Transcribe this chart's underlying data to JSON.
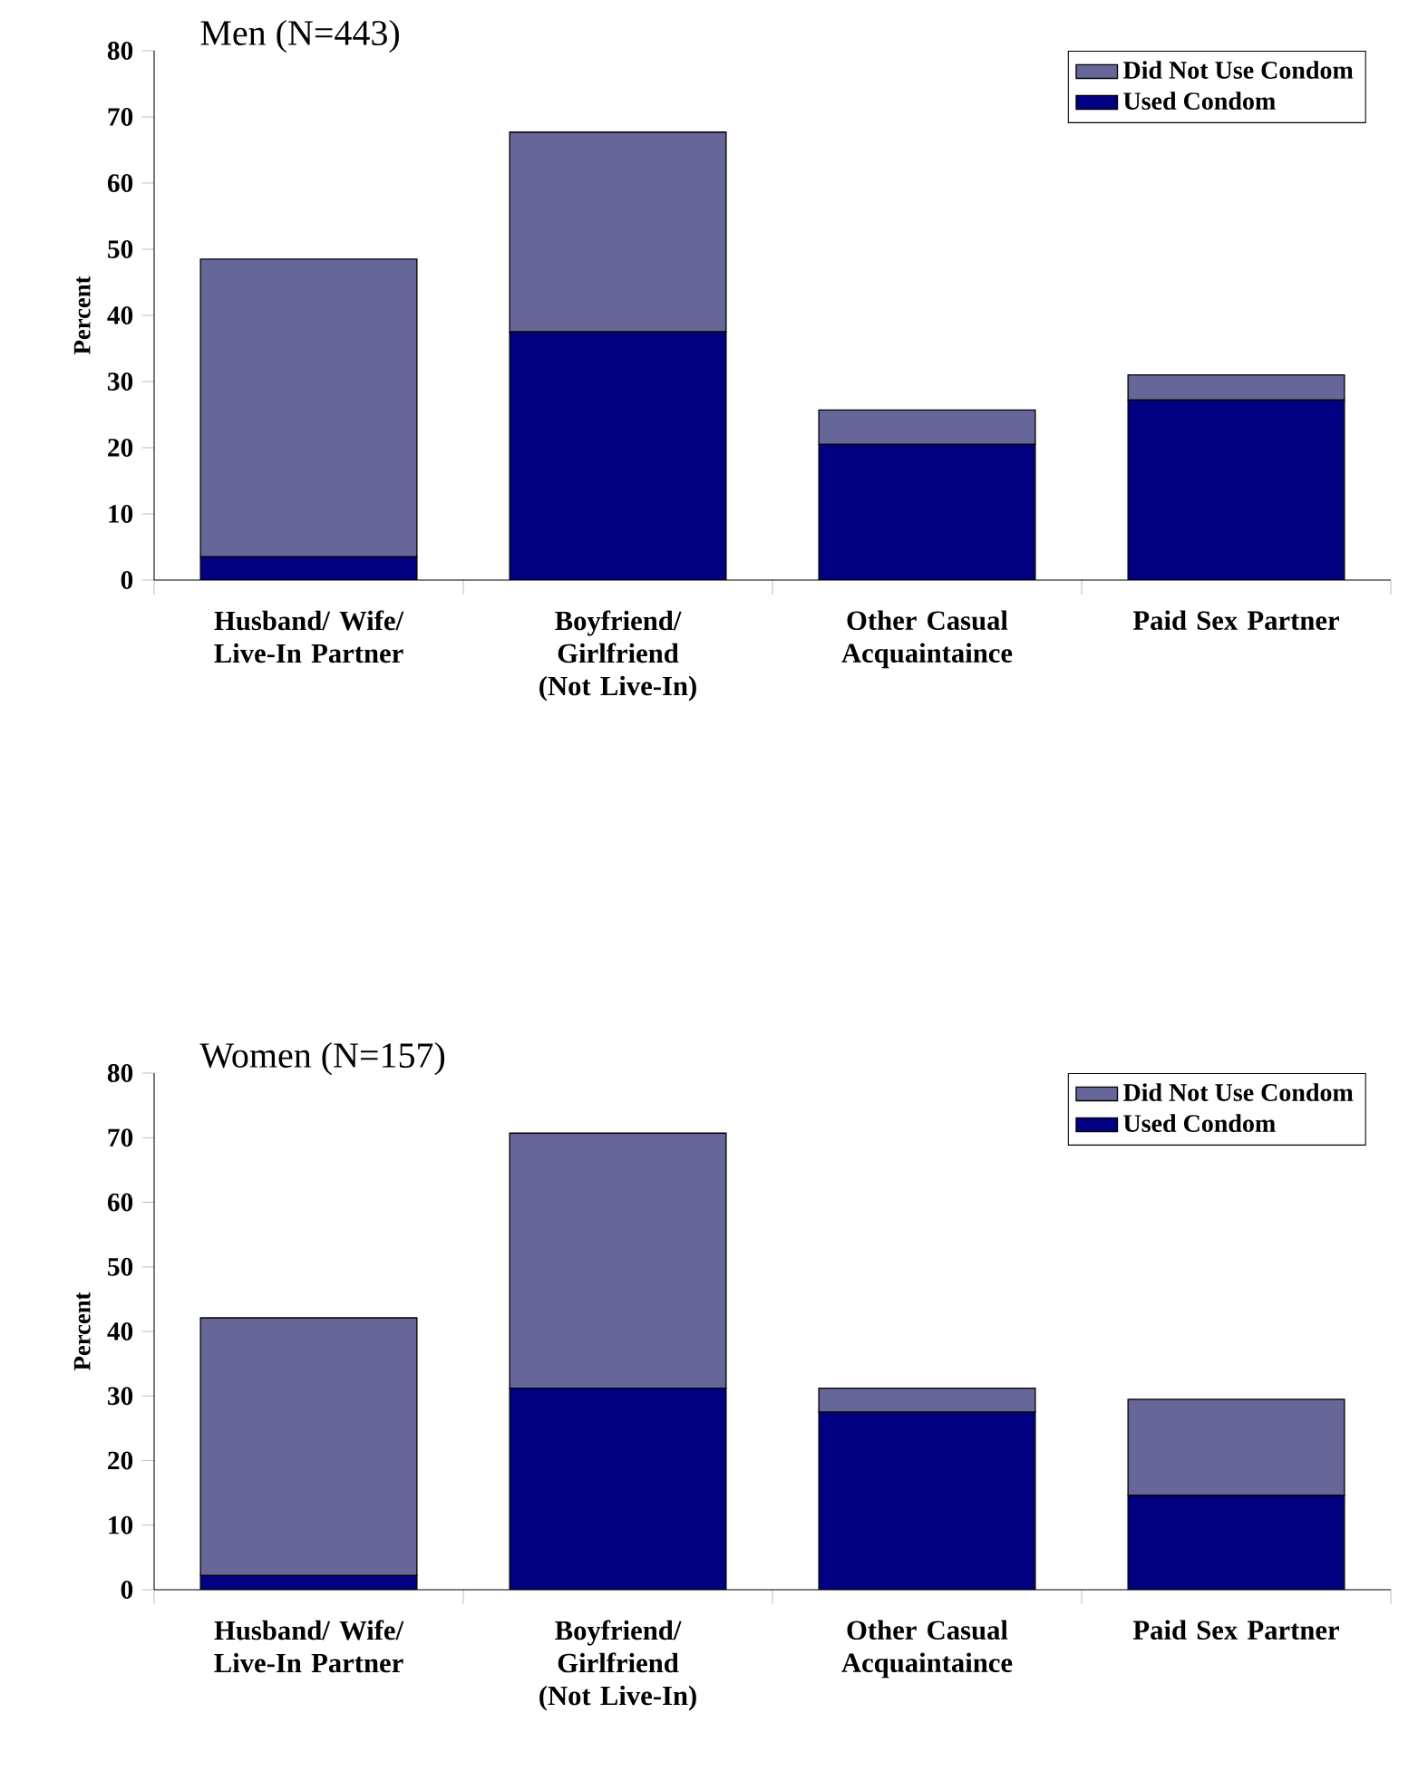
{
  "chart_data": [
    {
      "type": "bar",
      "stacked": true,
      "title": "Men (N=443)",
      "ylabel": "Percent",
      "categories": [
        "Husband/ Wife/ Live-In Partner",
        "Boyfriend/ Girlfriend (Not Live-In)",
        "Other Casual Acquaintaince",
        "Paid Sex Partner"
      ],
      "series": [
        {
          "name": "Used Condom",
          "color": "#000080",
          "values": [
            3.5,
            37.5,
            20.5,
            27.2
          ]
        },
        {
          "name": "Did Not Use Condom",
          "color": "#666699",
          "values": [
            45,
            30.2,
            5.2,
            3.8
          ]
        }
      ],
      "ylim": [
        0,
        80
      ],
      "yticks": [
        0,
        10,
        20,
        30,
        40,
        50,
        60,
        70,
        80
      ],
      "legend": "top right"
    },
    {
      "type": "bar",
      "stacked": true,
      "title": "Women (N=157)",
      "ylabel": "Percent",
      "categories": [
        "Husband/ Wife/ Live-In Partner",
        "Boyfriend/ Girlfriend (Not Live-In)",
        "Other Casual Acquaintaince",
        "Paid Sex Partner"
      ],
      "series": [
        {
          "name": "Used Condom",
          "color": "#000080",
          "values": [
            2.2,
            31.2,
            27.5,
            14.6
          ]
        },
        {
          "name": "Did Not Use Condom",
          "color": "#666699",
          "values": [
            39.9,
            39.5,
            3.7,
            14.9
          ]
        }
      ],
      "ylim": [
        0,
        80
      ],
      "yticks": [
        0,
        10,
        20,
        30,
        40,
        50,
        60,
        70,
        80
      ],
      "legend": "top right"
    }
  ]
}
